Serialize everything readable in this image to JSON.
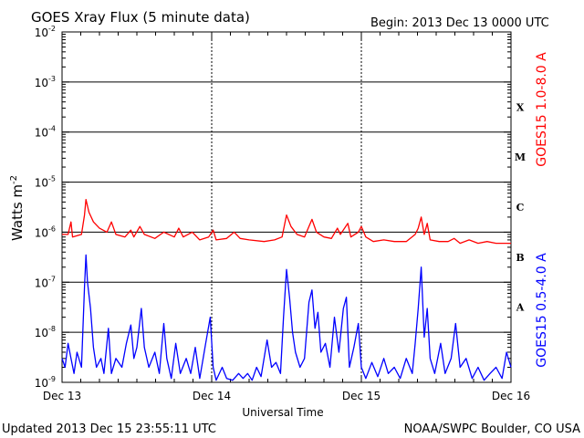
{
  "header": {
    "title": "GOES Xray Flux (5 minute data)",
    "begin": "Begin:  2013 Dec 13 0000 UTC"
  },
  "footer": {
    "updated": "Updated 2013 Dec 15 23:55:11 UTC",
    "credit": "NOAA/SWPC Boulder, CO USA"
  },
  "chart_data": {
    "type": "line",
    "title": "GOES Xray Flux (5 minute data)",
    "xlabel": "Universal Time",
    "ylabel": "Watts m",
    "ylabel_exponent": "-2",
    "y_scale": "log",
    "ylim": [
      1e-09,
      0.01
    ],
    "x_range_days": [
      0,
      3
    ],
    "x_tick_labels": [
      "Dec 13",
      "Dec 14",
      "Dec 15",
      "Dec 16"
    ],
    "y_tick_labels": [
      {
        "base": "10",
        "exp": "-9"
      },
      {
        "base": "10",
        "exp": "-8"
      },
      {
        "base": "10",
        "exp": "-7"
      },
      {
        "base": "10",
        "exp": "-6"
      },
      {
        "base": "10",
        "exp": "-5"
      },
      {
        "base": "10",
        "exp": "-4"
      },
      {
        "base": "10",
        "exp": "-3"
      },
      {
        "base": "10",
        "exp": "-2"
      }
    ],
    "flare_classes": [
      "X",
      "M",
      "C",
      "B",
      "A"
    ],
    "grid": true,
    "series": [
      {
        "name": "GOES15 1.0-8.0 A",
        "color": "#ff0000",
        "points": [
          [
            0.0,
            9e-07
          ],
          [
            0.04,
            9e-07
          ],
          [
            0.06,
            1.6e-06
          ],
          [
            0.07,
            8e-07
          ],
          [
            0.13,
            9e-07
          ],
          [
            0.15,
            2.2e-06
          ],
          [
            0.16,
            4.5e-06
          ],
          [
            0.18,
            2.5e-06
          ],
          [
            0.21,
            1.6e-06
          ],
          [
            0.25,
            1.2e-06
          ],
          [
            0.3,
            1e-06
          ],
          [
            0.33,
            1.6e-06
          ],
          [
            0.36,
            9e-07
          ],
          [
            0.42,
            8e-07
          ],
          [
            0.46,
            1.1e-06
          ],
          [
            0.48,
            8e-07
          ],
          [
            0.52,
            1.3e-06
          ],
          [
            0.55,
            9e-07
          ],
          [
            0.62,
            7.5e-07
          ],
          [
            0.68,
            1e-06
          ],
          [
            0.75,
            8e-07
          ],
          [
            0.78,
            1.2e-06
          ],
          [
            0.81,
            8e-07
          ],
          [
            0.87,
            1e-06
          ],
          [
            0.92,
            7e-07
          ],
          [
            0.98,
            8e-07
          ],
          [
            1.01,
            1.1e-06
          ],
          [
            1.03,
            7e-07
          ],
          [
            1.1,
            7.5e-07
          ],
          [
            1.15,
            1e-06
          ],
          [
            1.19,
            7.5e-07
          ],
          [
            1.25,
            7e-07
          ],
          [
            1.35,
            6.5e-07
          ],
          [
            1.42,
            7e-07
          ],
          [
            1.47,
            8e-07
          ],
          [
            1.5,
            2.2e-06
          ],
          [
            1.53,
            1.3e-06
          ],
          [
            1.57,
            9e-07
          ],
          [
            1.62,
            8e-07
          ],
          [
            1.67,
            1.8e-06
          ],
          [
            1.7,
            1e-06
          ],
          [
            1.75,
            8e-07
          ],
          [
            1.8,
            7.5e-07
          ],
          [
            1.84,
            1.2e-06
          ],
          [
            1.86,
            9e-07
          ],
          [
            1.91,
            1.5e-06
          ],
          [
            1.93,
            8e-07
          ],
          [
            1.98,
            1e-06
          ],
          [
            2.0,
            1.3e-06
          ],
          [
            2.03,
            8e-07
          ],
          [
            2.08,
            6.5e-07
          ],
          [
            2.15,
            7e-07
          ],
          [
            2.22,
            6.5e-07
          ],
          [
            2.3,
            6.5e-07
          ],
          [
            2.36,
            9e-07
          ],
          [
            2.38,
            1.2e-06
          ],
          [
            2.4,
            2e-06
          ],
          [
            2.42,
            9e-07
          ],
          [
            2.44,
            1.5e-06
          ],
          [
            2.46,
            7e-07
          ],
          [
            2.52,
            6.5e-07
          ],
          [
            2.58,
            6.5e-07
          ],
          [
            2.62,
            7.5e-07
          ],
          [
            2.66,
            6e-07
          ],
          [
            2.72,
            7e-07
          ],
          [
            2.78,
            6e-07
          ],
          [
            2.84,
            6.5e-07
          ],
          [
            2.9,
            6e-07
          ],
          [
            2.96,
            6e-07
          ],
          [
            3.0,
            6e-07
          ]
        ]
      },
      {
        "name": "GOES15 0.5-4.0 A",
        "color": "#0000ff",
        "points": [
          [
            0.0,
            3e-09
          ],
          [
            0.02,
            2e-09
          ],
          [
            0.04,
            6e-09
          ],
          [
            0.06,
            3e-09
          ],
          [
            0.08,
            1.5e-09
          ],
          [
            0.1,
            4e-09
          ],
          [
            0.13,
            2e-09
          ],
          [
            0.15,
            8e-08
          ],
          [
            0.16,
            3.5e-07
          ],
          [
            0.17,
            1e-07
          ],
          [
            0.19,
            3e-08
          ],
          [
            0.21,
            5e-09
          ],
          [
            0.23,
            2e-09
          ],
          [
            0.26,
            3e-09
          ],
          [
            0.28,
            1.5e-09
          ],
          [
            0.31,
            1.2e-08
          ],
          [
            0.33,
            1.5e-09
          ],
          [
            0.36,
            3e-09
          ],
          [
            0.4,
            2e-09
          ],
          [
            0.43,
            6e-09
          ],
          [
            0.46,
            1.4e-08
          ],
          [
            0.48,
            3e-09
          ],
          [
            0.5,
            5e-09
          ],
          [
            0.53,
            3e-08
          ],
          [
            0.55,
            5e-09
          ],
          [
            0.58,
            2e-09
          ],
          [
            0.62,
            4e-09
          ],
          [
            0.65,
            1.5e-09
          ],
          [
            0.68,
            1.5e-08
          ],
          [
            0.7,
            3e-09
          ],
          [
            0.73,
            1.2e-09
          ],
          [
            0.76,
            6e-09
          ],
          [
            0.79,
            1.5e-09
          ],
          [
            0.83,
            3e-09
          ],
          [
            0.86,
            1.5e-09
          ],
          [
            0.89,
            5e-09
          ],
          [
            0.92,
            1.2e-09
          ],
          [
            0.96,
            6e-09
          ],
          [
            0.99,
            2e-08
          ],
          [
            1.01,
            2e-09
          ],
          [
            1.03,
            1.1e-09
          ],
          [
            1.07,
            2e-09
          ],
          [
            1.1,
            1.2e-09
          ],
          [
            1.14,
            1.1e-09
          ],
          [
            1.18,
            1.5e-09
          ],
          [
            1.21,
            1.2e-09
          ],
          [
            1.24,
            1.5e-09
          ],
          [
            1.27,
            1.1e-09
          ],
          [
            1.3,
            2e-09
          ],
          [
            1.33,
            1.3e-09
          ],
          [
            1.37,
            7e-09
          ],
          [
            1.4,
            2e-09
          ],
          [
            1.43,
            2.5e-09
          ],
          [
            1.46,
            1.5e-09
          ],
          [
            1.48,
            2e-08
          ],
          [
            1.5,
            1.8e-07
          ],
          [
            1.52,
            5e-08
          ],
          [
            1.54,
            1e-08
          ],
          [
            1.56,
            4e-09
          ],
          [
            1.59,
            2e-09
          ],
          [
            1.62,
            3e-09
          ],
          [
            1.65,
            4e-08
          ],
          [
            1.67,
            7e-08
          ],
          [
            1.69,
            1.2e-08
          ],
          [
            1.71,
            2.5e-08
          ],
          [
            1.73,
            4e-09
          ],
          [
            1.76,
            6e-09
          ],
          [
            1.79,
            2e-09
          ],
          [
            1.82,
            2e-08
          ],
          [
            1.85,
            4e-09
          ],
          [
            1.88,
            3e-08
          ],
          [
            1.9,
            5e-08
          ],
          [
            1.92,
            2e-09
          ],
          [
            1.95,
            5e-09
          ],
          [
            1.98,
            1.5e-08
          ],
          [
            2.0,
            2e-09
          ],
          [
            2.03,
            1.2e-09
          ],
          [
            2.07,
            2.5e-09
          ],
          [
            2.11,
            1.3e-09
          ],
          [
            2.15,
            3e-09
          ],
          [
            2.18,
            1.5e-09
          ],
          [
            2.22,
            2e-09
          ],
          [
            2.26,
            1.2e-09
          ],
          [
            2.3,
            3e-09
          ],
          [
            2.34,
            1.5e-09
          ],
          [
            2.36,
            6e-09
          ],
          [
            2.38,
            3e-08
          ],
          [
            2.4,
            2e-07
          ],
          [
            2.42,
            8e-09
          ],
          [
            2.44,
            3e-08
          ],
          [
            2.46,
            3e-09
          ],
          [
            2.49,
            1.5e-09
          ],
          [
            2.53,
            6e-09
          ],
          [
            2.56,
            1.5e-09
          ],
          [
            2.6,
            3e-09
          ],
          [
            2.63,
            1.5e-08
          ],
          [
            2.66,
            2e-09
          ],
          [
            2.7,
            3e-09
          ],
          [
            2.74,
            1.2e-09
          ],
          [
            2.78,
            2e-09
          ],
          [
            2.82,
            1.1e-09
          ],
          [
            2.86,
            1.5e-09
          ],
          [
            2.9,
            2e-09
          ],
          [
            2.94,
            1.2e-09
          ],
          [
            2.97,
            4e-09
          ],
          [
            3.0,
            2e-09
          ]
        ]
      }
    ]
  }
}
